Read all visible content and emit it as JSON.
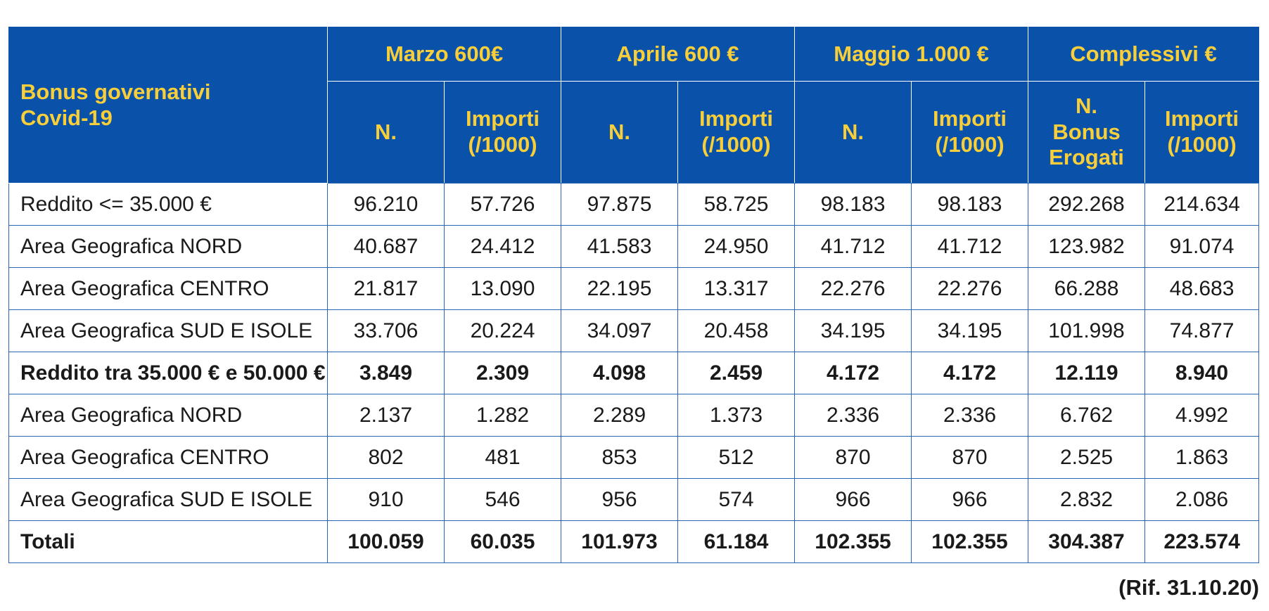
{
  "table": {
    "corner_header": [
      "Bonus governativi",
      "Covid-19"
    ],
    "groups": [
      "Marzo 600€",
      "Aprile 600 €",
      "Maggio 1.000 €",
      "Complessivi €"
    ],
    "subheaders": {
      "n": "N.",
      "importi": [
        "Importi",
        "(/1000)"
      ],
      "n_bonus": [
        "N.",
        "Bonus",
        "Erogati"
      ]
    },
    "rows": [
      {
        "label": "Reddito <= 35.000 €",
        "bold": false,
        "values": [
          "96.210",
          "57.726",
          "97.875",
          "58.725",
          "98.183",
          "98.183",
          "292.268",
          "214.634"
        ]
      },
      {
        "label": "Area Geografica NORD",
        "bold": false,
        "values": [
          "40.687",
          "24.412",
          "41.583",
          "24.950",
          "41.712",
          "41.712",
          "123.982",
          "91.074"
        ]
      },
      {
        "label": "Area Geografica CENTRO",
        "bold": false,
        "values": [
          "21.817",
          "13.090",
          "22.195",
          "13.317",
          "22.276",
          "22.276",
          "66.288",
          "48.683"
        ]
      },
      {
        "label": "Area Geografica SUD E ISOLE",
        "bold": false,
        "values": [
          "33.706",
          "20.224",
          "34.097",
          "20.458",
          "34.195",
          "34.195",
          "101.998",
          "74.877"
        ]
      },
      {
        "label": "Reddito tra 35.000 € e 50.000 €",
        "bold": true,
        "values": [
          "3.849",
          "2.309",
          "4.098",
          "2.459",
          "4.172",
          "4.172",
          "12.119",
          "8.940"
        ]
      },
      {
        "label": "Area Geografica NORD",
        "bold": false,
        "values": [
          "2.137",
          "1.282",
          "2.289",
          "1.373",
          "2.336",
          "2.336",
          "6.762",
          "4.992"
        ]
      },
      {
        "label": "Area Geografica CENTRO",
        "bold": false,
        "values": [
          "802",
          "481",
          "853",
          "512",
          "870",
          "870",
          "2.525",
          "1.863"
        ]
      },
      {
        "label": "Area Geografica SUD E ISOLE",
        "bold": false,
        "values": [
          "910",
          "546",
          "956",
          "574",
          "966",
          "966",
          "2.832",
          "2.086"
        ]
      },
      {
        "label": "Totali",
        "bold": true,
        "values": [
          "100.059",
          "60.035",
          "101.973",
          "61.184",
          "102.355",
          "102.355",
          "304.387",
          "223.574"
        ]
      }
    ]
  },
  "footer": {
    "reference": "(Rif. 31.10.20)"
  },
  "colors": {
    "header_bg": "#0a52a9",
    "header_text": "#f8cf3a",
    "grid": "#2a65b5"
  }
}
